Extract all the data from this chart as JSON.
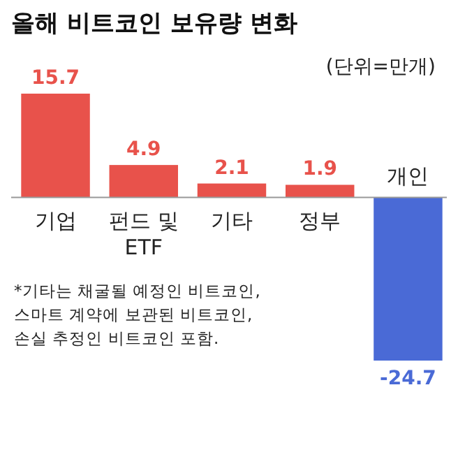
{
  "chart_data": {
    "type": "bar",
    "title": "올해 비트코인 보유량 변화",
    "subtitle": "(단위=만개)",
    "categories": [
      "기업",
      "펀드 및 ETF",
      "기타",
      "정부",
      "개인"
    ],
    "values": [
      15.7,
      4.9,
      2.1,
      1.9,
      -24.7
    ],
    "colors": [
      "#e8524b",
      "#e8524b",
      "#e8524b",
      "#e8524b",
      "#4a6ad6"
    ],
    "data_labels": true,
    "annotations": [
      "*기타는 채굴될 예정인 비트코인, 스마트 계약에 보관된 비트코인, 손실 추정인 비트코인 포함."
    ]
  }
}
